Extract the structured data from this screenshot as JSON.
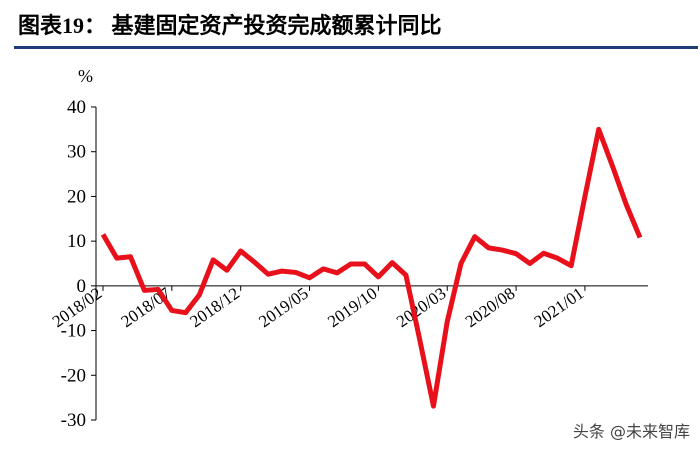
{
  "chart_data": {
    "type": "line",
    "title": "图表19：  基建固定资产投资完成额累计同比",
    "y_label": "%",
    "watermark": "头条 @未来智库",
    "categories": [
      "2018/02",
      null,
      null,
      null,
      null,
      "2018/07",
      null,
      null,
      null,
      null,
      "2018/12",
      null,
      null,
      null,
      null,
      "2019/05",
      null,
      null,
      null,
      null,
      "2019/10",
      null,
      null,
      null,
      null,
      "2020/03",
      null,
      null,
      null,
      null,
      "2020/08",
      null,
      null,
      null,
      null,
      "2021/01",
      null,
      null,
      null,
      null
    ],
    "series": [
      {
        "name": "基建固定资产投资完成额累计同比",
        "color": "#e8101a",
        "values": [
          11.5,
          6.2,
          6.5,
          -1,
          -0.8,
          -5.5,
          -6,
          -2,
          5.8,
          3.5,
          7.8,
          5.3,
          2.6,
          3.3,
          3,
          1.8,
          3.8,
          2.9,
          4.9,
          4.9,
          2,
          5.2,
          2.4,
          -12,
          -26.9,
          -8,
          5,
          11,
          8.5,
          8,
          7.2,
          5,
          7.3,
          6.2,
          4.5,
          20,
          35,
          26.8,
          18.2,
          10.8
        ]
      }
    ],
    "ylim": [
      -30,
      40
    ],
    "yticks": [
      -30,
      -20,
      -10,
      0,
      10,
      20,
      30,
      40
    ]
  }
}
